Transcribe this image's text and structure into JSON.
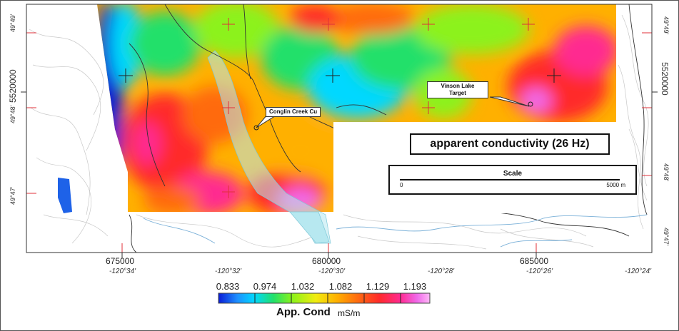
{
  "map": {
    "title": "apparent conductivity (26 Hz)",
    "callouts": {
      "conglin": "Conglin Creek Cu",
      "vinson_line1": "Vinson Lake",
      "vinson_line2": "Target"
    },
    "northing_left": "5520000",
    "northing_right": "5520000",
    "eastings": [
      "675000",
      "680000",
      "685000"
    ],
    "longitudes": [
      "-120°34'",
      "-120°32'",
      "-120°30'",
      "-120°28'",
      "-120°26'",
      "-120°24'"
    ],
    "latitudes_left": [
      "49°49'",
      "49°48'",
      "49°47'"
    ],
    "latitudes_right": [
      "49°49'",
      "49°48'",
      "49°47'"
    ]
  },
  "scale": {
    "label": "Scale",
    "min": "0",
    "max": "5000 m"
  },
  "legend": {
    "ticks": [
      "0.833",
      "0.974",
      "1.032",
      "1.082",
      "1.129",
      "1.193"
    ],
    "title": "App. Cond",
    "unit": "mS/m",
    "colors": [
      "#0a1cd6",
      "#1e90ff",
      "#00d8ff",
      "#22e06a",
      "#8cf21a",
      "#f0ec10",
      "#ffb000",
      "#ff6a10",
      "#ff2a2a",
      "#ff2a90",
      "#f06aea",
      "#ffb8f6"
    ]
  }
}
